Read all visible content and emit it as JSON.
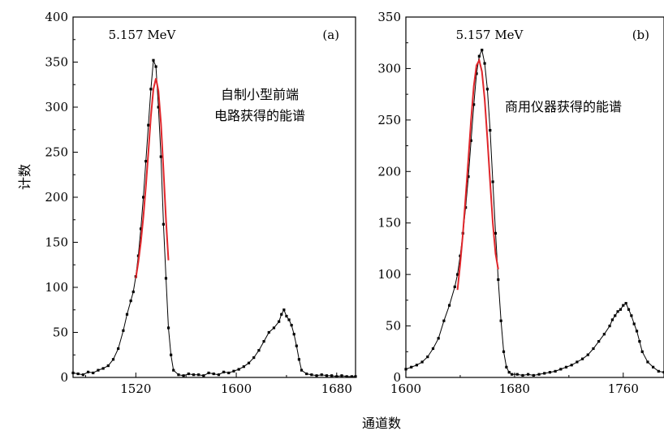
{
  "figure": {
    "ylabel": "计数",
    "xlabel": "通道数"
  },
  "chart_data": [
    {
      "type": "line",
      "panel_label": "(a)",
      "peak_label": "5.157 MeV",
      "annotation": [
        "自制小型前端",
        "电路获得的能谱"
      ],
      "xlim": [
        1470,
        1695
      ],
      "ylim": [
        0,
        400
      ],
      "xticks": [
        1520,
        1600,
        1680
      ],
      "yticks": [
        0,
        50,
        100,
        150,
        200,
        250,
        300,
        350,
        400
      ],
      "colors": {
        "data": "#000000",
        "fit": "#e0262b"
      },
      "series": [
        {
          "kind": "data",
          "x": [
            1470,
            1474,
            1478,
            1482,
            1486,
            1490,
            1494,
            1498,
            1502,
            1506,
            1510,
            1513,
            1516,
            1518,
            1520,
            1522,
            1524,
            1526,
            1528,
            1530,
            1532,
            1534,
            1536,
            1538,
            1540,
            1542,
            1544,
            1546,
            1548,
            1550,
            1554,
            1558,
            1562,
            1566,
            1570,
            1574,
            1578,
            1582,
            1586,
            1590,
            1594,
            1598,
            1602,
            1606,
            1610,
            1614,
            1618,
            1622,
            1626,
            1630,
            1634,
            1636,
            1638,
            1640,
            1642,
            1644,
            1646,
            1648,
            1650,
            1652,
            1656,
            1660,
            1664,
            1668,
            1672,
            1676,
            1680,
            1684,
            1688,
            1692,
            1695
          ],
          "y": [
            5,
            4,
            3,
            6,
            5,
            8,
            10,
            13,
            20,
            32,
            52,
            70,
            85,
            95,
            112,
            135,
            165,
            200,
            240,
            280,
            320,
            352,
            345,
            300,
            245,
            170,
            110,
            55,
            25,
            8,
            3,
            2,
            4,
            3,
            3,
            2,
            5,
            4,
            3,
            6,
            5,
            7,
            9,
            12,
            16,
            22,
            30,
            40,
            50,
            55,
            62,
            70,
            75,
            68,
            64,
            58,
            48,
            35,
            20,
            8,
            4,
            3,
            2,
            3,
            2,
            2,
            1,
            2,
            1,
            1,
            1
          ]
        },
        {
          "kind": "fit",
          "x": [
            1520,
            1522,
            1524,
            1526,
            1528,
            1530,
            1532,
            1534,
            1536,
            1538,
            1540,
            1542,
            1544,
            1546
          ],
          "y": [
            110,
            128,
            150,
            178,
            212,
            250,
            290,
            320,
            332,
            318,
            282,
            230,
            175,
            130
          ]
        }
      ]
    },
    {
      "type": "line",
      "panel_label": "(b)",
      "peak_label": "5.157 MeV",
      "annotation": [
        "商用仪器获得的能谱"
      ],
      "xlim": [
        1600,
        1790
      ],
      "ylim": [
        0,
        350
      ],
      "xticks": [
        1600,
        1680,
        1760
      ],
      "yticks": [
        0,
        50,
        100,
        150,
        200,
        250,
        300,
        350
      ],
      "colors": {
        "data": "#000000",
        "fit": "#e0262b"
      },
      "series": [
        {
          "kind": "data",
          "x": [
            1600,
            1604,
            1608,
            1612,
            1616,
            1620,
            1624,
            1628,
            1632,
            1636,
            1638,
            1640,
            1642,
            1644,
            1646,
            1648,
            1650,
            1652,
            1654,
            1656,
            1658,
            1660,
            1662,
            1664,
            1666,
            1668,
            1670,
            1672,
            1674,
            1676,
            1678,
            1682,
            1686,
            1690,
            1694,
            1698,
            1702,
            1706,
            1710,
            1714,
            1718,
            1722,
            1726,
            1730,
            1734,
            1738,
            1742,
            1746,
            1750,
            1752,
            1754,
            1756,
            1758,
            1760,
            1762,
            1764,
            1766,
            1768,
            1770,
            1772,
            1774,
            1778,
            1782,
            1786,
            1790
          ],
          "y": [
            8,
            10,
            12,
            15,
            20,
            28,
            38,
            55,
            70,
            88,
            100,
            118,
            140,
            165,
            195,
            230,
            265,
            295,
            312,
            318,
            305,
            280,
            240,
            190,
            140,
            95,
            55,
            25,
            10,
            5,
            3,
            3,
            2,
            3,
            2,
            3,
            4,
            5,
            6,
            8,
            10,
            12,
            15,
            18,
            22,
            28,
            35,
            42,
            50,
            56,
            60,
            64,
            66,
            70,
            72,
            66,
            60,
            52,
            45,
            35,
            25,
            15,
            10,
            6,
            5
          ]
        },
        {
          "kind": "fit",
          "x": [
            1638,
            1640,
            1642,
            1644,
            1646,
            1648,
            1650,
            1652,
            1654,
            1656,
            1658,
            1660,
            1662,
            1664,
            1666,
            1668
          ],
          "y": [
            85,
            110,
            140,
            175,
            212,
            250,
            283,
            303,
            308,
            297,
            270,
            232,
            190,
            150,
            120,
            105
          ]
        }
      ]
    }
  ]
}
